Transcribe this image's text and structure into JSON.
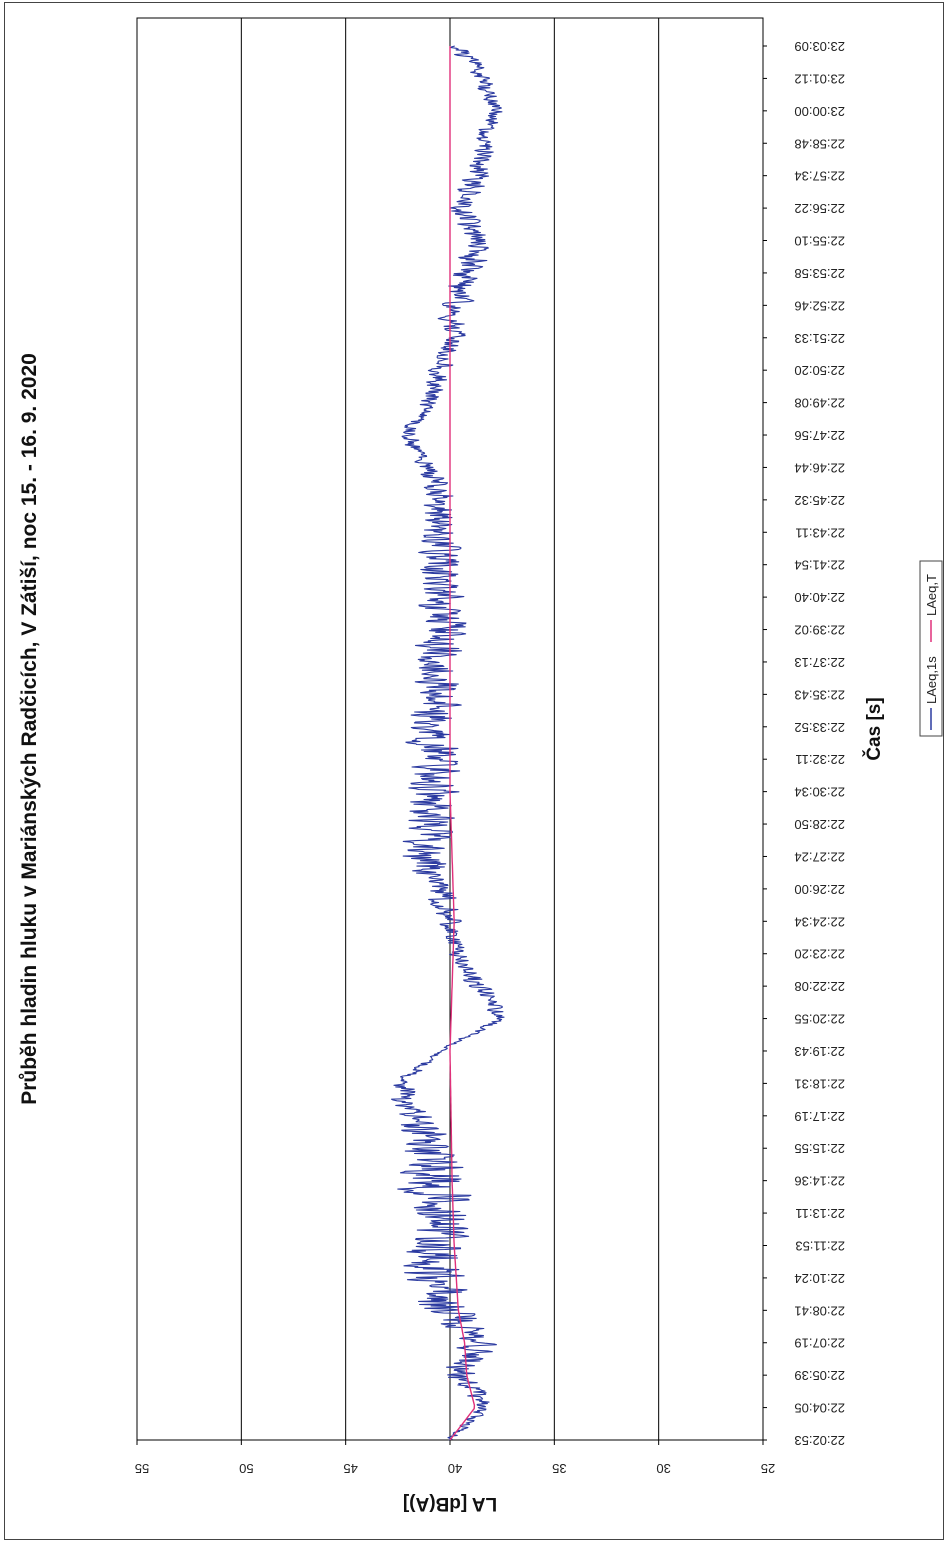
{
  "chart_data": {
    "type": "line",
    "title": "Průběh hladin hluku v Mariánských Radčicích, V Zátiší, noc 15. - 16. 9. 2020",
    "xlabel": "Čas [s]",
    "ylabel": "LA [dB(A)]",
    "ylim": [
      25,
      55
    ],
    "yticks": [
      "25",
      "30",
      "35",
      "40",
      "45",
      "50",
      "55"
    ],
    "x_tick_labels": [
      "22:02:53",
      "22:04:05",
      "22:05:39",
      "22:07:19",
      "22:08:41",
      "22:10:24",
      "22:11:53",
      "22:13:11",
      "22:14:36",
      "22:15:55",
      "22:17:19",
      "22:18:31",
      "22:19:43",
      "22:20:55",
      "22:22:08",
      "22:23:20",
      "22:24:34",
      "22:26:00",
      "22:27:24",
      "22:28:50",
      "22:30:34",
      "22:32:11",
      "22:33:52",
      "22:35:43",
      "22:37:13",
      "22:39:02",
      "22:40:40",
      "22:41:54",
      "22:43:11",
      "22:45:32",
      "22:46:44",
      "22:47:56",
      "22:49:08",
      "22:50:20",
      "22:51:33",
      "22:52:46",
      "22:53:58",
      "22:55:10",
      "22:56:22",
      "22:57:34",
      "22:58:48",
      "23:00:00",
      "23:01:12",
      "23:03:09"
    ],
    "grid": true,
    "legend_position": "bottom",
    "orientation": "rotated 90 degrees clockwise (value axis horizontal at bottom)",
    "series": [
      {
        "name": "LAeq,1s",
        "color": "#2b3aa0",
        "profile": [
          [
            0,
            40.0,
            0.3
          ],
          [
            1,
            38.3,
            0.6
          ],
          [
            2,
            39.5,
            1.2
          ],
          [
            3,
            38.5,
            1.2
          ],
          [
            4,
            40.3,
            1.8
          ],
          [
            5,
            40.6,
            2.0
          ],
          [
            6,
            40.6,
            2.0
          ],
          [
            7,
            40.4,
            2.0
          ],
          [
            8,
            40.8,
            2.2
          ],
          [
            9,
            41.3,
            1.8
          ],
          [
            10,
            41.6,
            1.2
          ],
          [
            11,
            42.4,
            0.6
          ],
          [
            12,
            40.5,
            0.2
          ],
          [
            13,
            37.5,
            0.5
          ],
          [
            14,
            38.5,
            0.8
          ],
          [
            15,
            39.6,
            0.6
          ],
          [
            16,
            40.0,
            0.7
          ],
          [
            17,
            40.6,
            1.0
          ],
          [
            18,
            41.4,
            1.5
          ],
          [
            19,
            41.1,
            1.5
          ],
          [
            20,
            40.8,
            1.6
          ],
          [
            21,
            40.8,
            1.6
          ],
          [
            22,
            40.8,
            1.4
          ],
          [
            23,
            40.6,
            1.6
          ],
          [
            24,
            40.8,
            1.6
          ],
          [
            25,
            40.3,
            1.5
          ],
          [
            26,
            40.3,
            1.5
          ],
          [
            27,
            40.4,
            1.4
          ],
          [
            28,
            40.7,
            1.2
          ],
          [
            29,
            40.4,
            1.0
          ],
          [
            30,
            41.2,
            0.6
          ],
          [
            31,
            42.0,
            0.5
          ],
          [
            32,
            41.0,
            0.6
          ],
          [
            33,
            40.5,
            0.8
          ],
          [
            34,
            39.8,
            0.7
          ],
          [
            35,
            39.8,
            1.0
          ],
          [
            36,
            39.2,
            1.0
          ],
          [
            37,
            38.7,
            0.8
          ],
          [
            38,
            39.4,
            0.8
          ],
          [
            39,
            38.7,
            0.8
          ],
          [
            40,
            38.4,
            0.6
          ],
          [
            41,
            37.8,
            0.5
          ],
          [
            42,
            38.5,
            0.6
          ],
          [
            43,
            39.5,
            0.7
          ]
        ]
      },
      {
        "name": "LAeq,T",
        "color": "#e0307a",
        "profile": [
          [
            0,
            40.0
          ],
          [
            1,
            38.8
          ],
          [
            2,
            39.2
          ],
          [
            3,
            39.3
          ],
          [
            4,
            39.6
          ],
          [
            5,
            39.7
          ],
          [
            6,
            39.8
          ],
          [
            8,
            39.9
          ],
          [
            10,
            39.95
          ],
          [
            12,
            40.0
          ],
          [
            16,
            39.8
          ],
          [
            18,
            39.9
          ],
          [
            20,
            40.0
          ],
          [
            43,
            40.0
          ]
        ]
      }
    ]
  },
  "legend": {
    "items": [
      {
        "label": "LAeq,1s",
        "color": "#2b3aa0"
      },
      {
        "label": "LAeq,T",
        "color": "#e0307a"
      }
    ]
  }
}
